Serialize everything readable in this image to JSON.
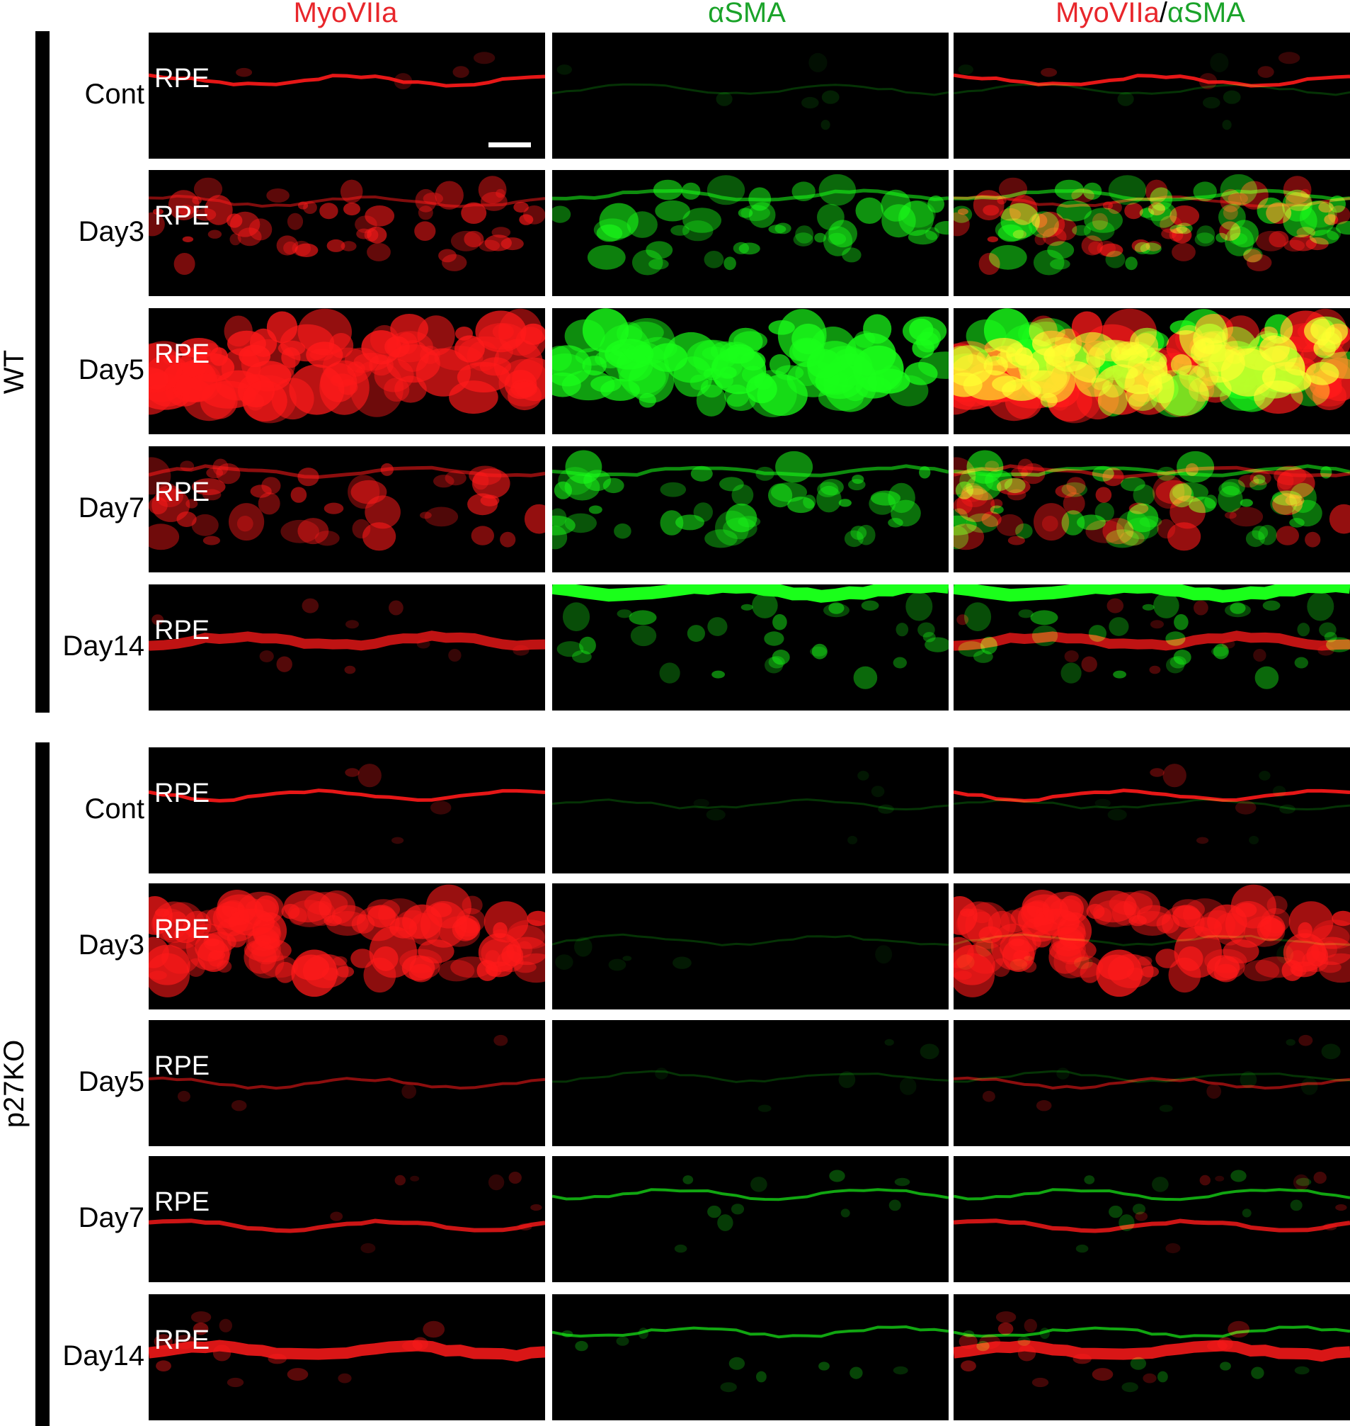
{
  "columns": [
    {
      "parts": [
        {
          "text": "MyoVIIa",
          "color": "#e8262b"
        }
      ]
    },
    {
      "parts": [
        {
          "text": "αSMA",
          "color": "#1aa329"
        }
      ]
    },
    {
      "parts": [
        {
          "text": "MyoVIIa",
          "color": "#e8262b"
        },
        {
          "text": "/",
          "color": "#000000"
        },
        {
          "text": "αSMA",
          "color": "#1aa329"
        }
      ]
    }
  ],
  "groups": [
    {
      "label": "WT",
      "rows": [
        {
          "label": "Cont",
          "red": "faint-line",
          "green": "faint",
          "scalebar": true
        },
        {
          "label": "Day3",
          "red": "patchy",
          "green": "medium"
        },
        {
          "label": "Day5",
          "red": "strong",
          "green": "strong"
        },
        {
          "label": "Day7",
          "red": "medium",
          "green": "medium"
        },
        {
          "label": "Day14",
          "red": "thin-band",
          "green": "top-band"
        }
      ]
    },
    {
      "label": "p27KO",
      "rows": [
        {
          "label": "Cont",
          "red": "faint-line",
          "green": "faint"
        },
        {
          "label": "Day3",
          "red": "strong-diffuse",
          "green": "faint"
        },
        {
          "label": "Day5",
          "red": "thin-line",
          "green": "faint"
        },
        {
          "label": "Day7",
          "red": "wavy-line",
          "green": "thin-lines"
        },
        {
          "label": "Day14",
          "red": "band",
          "green": "thin-lines"
        }
      ]
    }
  ],
  "panel_label": "RPE",
  "colors": {
    "red": "#ff1a1a",
    "green": "#1aff1a",
    "yellow": "#ffff33",
    "background": "#000000"
  }
}
